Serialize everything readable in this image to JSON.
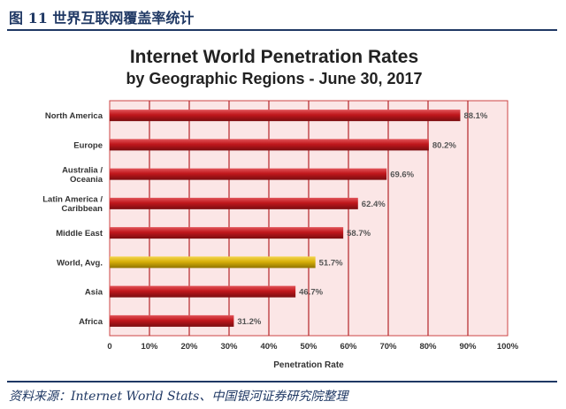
{
  "header": {
    "figure_title": "图 11 世界互联网覆盖率统计"
  },
  "footer": {
    "source": "资料来源：Internet World Stats、中国银河证券研究院整理"
  },
  "colors": {
    "bar": "#c0171c",
    "highlight_bar": "#d8b00a",
    "plot_background": "#fbe6e6",
    "grid": "#b3262a",
    "header_text": "#1f3864"
  },
  "chart_data": {
    "type": "bar",
    "orientation": "horizontal",
    "title": "Internet World Penetration Rates",
    "subtitle": "by Geographic Regions - June 30, 2017",
    "xlabel": "Penetration Rate",
    "ylabel": "",
    "xlim": [
      0,
      100
    ],
    "x_ticks": [
      "0",
      "10%",
      "20%",
      "30%",
      "40%",
      "50%",
      "60%",
      "70%",
      "80%",
      "90%",
      "100%"
    ],
    "grid": true,
    "categories": [
      [
        "North America"
      ],
      [
        "Europe"
      ],
      [
        "Australia /",
        "Oceania"
      ],
      [
        "Latin America /",
        "Caribbean"
      ],
      [
        "Middle East"
      ],
      [
        "World, Avg."
      ],
      [
        "Asia"
      ],
      [
        "Africa"
      ]
    ],
    "values": [
      88.1,
      80.2,
      69.6,
      62.4,
      58.7,
      51.7,
      46.7,
      31.2
    ],
    "value_labels": [
      "88.1%",
      "80.2%",
      "69.6%",
      "62.4%",
      "58.7%",
      "51.7%",
      "46.7%",
      "31.2%"
    ],
    "highlight_category": "World, Avg."
  }
}
